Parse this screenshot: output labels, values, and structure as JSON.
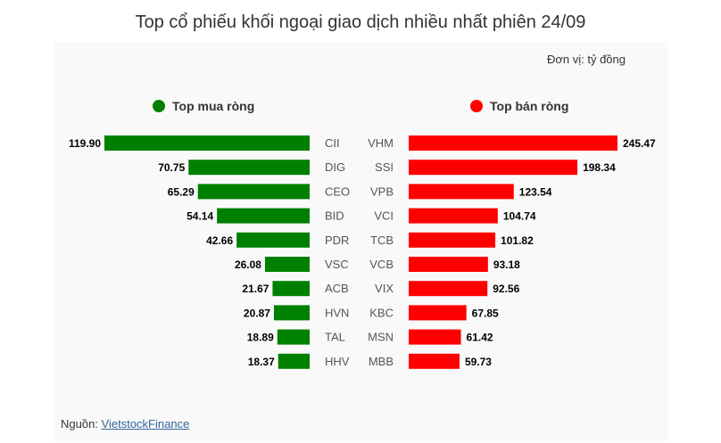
{
  "title": "Top cổ phiếu khối ngoại giao dịch nhiều nhất phiên 24/09",
  "unit": "Đơn vị: tỷ đồng",
  "source_prefix": "Nguồn: ",
  "source_link": "VietstockFinance",
  "colors": {
    "buy": "#008000",
    "sell": "#ff0000"
  },
  "chart_data": {
    "type": "bar",
    "legend": [
      "Top mua ròng",
      "Top bán ròng"
    ],
    "series": [
      {
        "name": "Top mua ròng",
        "color": "#008000",
        "categories": [
          "CII",
          "DIG",
          "CEO",
          "BID",
          "PDR",
          "VSC",
          "ACB",
          "HVN",
          "TAL",
          "HHV"
        ],
        "values": [
          119.9,
          70.75,
          65.29,
          54.14,
          42.66,
          26.08,
          21.67,
          20.87,
          18.89,
          18.37
        ],
        "labels": [
          "119.90",
          "70.75",
          "65.29",
          "54.14",
          "42.66",
          "26.08",
          "21.67",
          "20.87",
          "18.89",
          "18.37"
        ]
      },
      {
        "name": "Top bán ròng",
        "color": "#ff0000",
        "categories": [
          "VHM",
          "SSI",
          "VPB",
          "VCI",
          "TCB",
          "VCB",
          "VIX",
          "KBC",
          "MSN",
          "MBB"
        ],
        "values": [
          245.47,
          198.34,
          123.54,
          104.74,
          101.82,
          93.18,
          92.56,
          67.85,
          61.42,
          59.73
        ],
        "labels": [
          "245.47",
          "198.34",
          "123.54",
          "104.74",
          "101.82",
          "93.18",
          "92.56",
          "67.85",
          "61.42",
          "59.73"
        ]
      }
    ]
  }
}
